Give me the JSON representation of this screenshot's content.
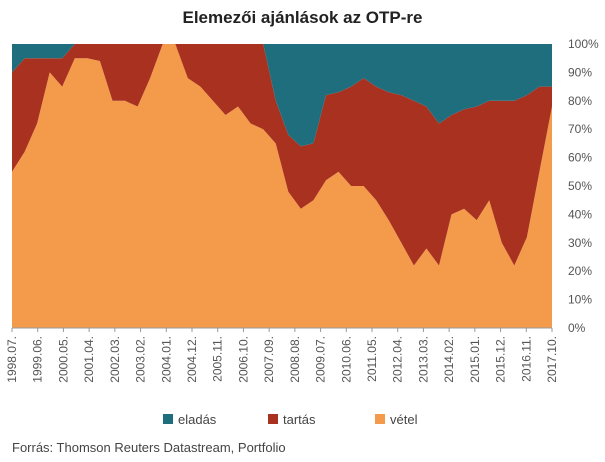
{
  "colors": {
    "eladas": "#1f6e7e",
    "tartas": "#a83120",
    "vetel": "#f39b4a"
  },
  "chart_data": {
    "type": "area",
    "stacked": true,
    "title": "Elemezői ajánlások az OTP-re",
    "source": "Forrás: Thomson Reuters Datastream, Portfolio",
    "ylim": [
      0,
      100
    ],
    "y_ticks": [
      "0%",
      "10%",
      "20%",
      "30%",
      "40%",
      "50%",
      "60%",
      "70%",
      "80%",
      "90%",
      "100%"
    ],
    "x_ticks": [
      "1998.07.",
      "1999.06.",
      "2000.05.",
      "2001.04.",
      "2002.03.",
      "2003.02.",
      "2004.01.",
      "2004.12.",
      "2005.11.",
      "2006.10.",
      "2007.09.",
      "2008.08.",
      "2009.07.",
      "2010.06.",
      "2011.05.",
      "2012.04.",
      "2013.03.",
      "2014.02.",
      "2015.01.",
      "2015.12.",
      "2016.11.",
      "2017.10."
    ],
    "legend": [
      {
        "key": "eladas",
        "label": "eladás"
      },
      {
        "key": "tartas",
        "label": "tartás"
      },
      {
        "key": "vetel",
        "label": "vétel"
      }
    ],
    "x": [
      "1998.07.",
      "1998.12.",
      "1999.06.",
      "1999.12.",
      "2000.05.",
      "2000.11.",
      "2001.04.",
      "2001.10.",
      "2002.03.",
      "2002.09.",
      "2003.02.",
      "2003.08.",
      "2004.01.",
      "2004.07.",
      "2004.12.",
      "2005.06.",
      "2005.11.",
      "2006.05.",
      "2006.10.",
      "2007.04.",
      "2007.09.",
      "2008.03.",
      "2008.08.",
      "2009.02.",
      "2009.07.",
      "2010.01.",
      "2010.06.",
      "2010.12.",
      "2011.05.",
      "2011.11.",
      "2012.04.",
      "2012.10.",
      "2013.03.",
      "2013.09.",
      "2014.02.",
      "2014.08.",
      "2015.01.",
      "2015.07.",
      "2015.12.",
      "2016.06.",
      "2016.11.",
      "2017.05.",
      "2017.10.",
      "2018.03."
    ],
    "series": [
      {
        "name": "vétel",
        "key": "vetel",
        "values": [
          55,
          62,
          72,
          90,
          85,
          95,
          95,
          94,
          80,
          80,
          78,
          88,
          100,
          100,
          88,
          85,
          80,
          75,
          78,
          72,
          70,
          65,
          48,
          42,
          45,
          52,
          55,
          50,
          50,
          45,
          38,
          30,
          22,
          28,
          22,
          40,
          42,
          38,
          45,
          30,
          22,
          32,
          55,
          78
        ]
      },
      {
        "name": "tartás",
        "key": "tartas",
        "values": [
          35,
          33,
          23,
          5,
          10,
          5,
          5,
          6,
          20,
          20,
          22,
          12,
          0,
          0,
          12,
          15,
          20,
          25,
          22,
          28,
          30,
          15,
          20,
          22,
          20,
          30,
          28,
          35,
          38,
          40,
          45,
          52,
          58,
          50,
          50,
          35,
          35,
          40,
          35,
          50,
          58,
          50,
          30,
          7
        ]
      },
      {
        "name": "eladás",
        "key": "eladas",
        "values": [
          10,
          5,
          5,
          5,
          5,
          0,
          0,
          0,
          0,
          0,
          0,
          0,
          0,
          0,
          0,
          0,
          0,
          0,
          0,
          0,
          0,
          20,
          32,
          36,
          35,
          18,
          17,
          15,
          12,
          15,
          17,
          18,
          20,
          22,
          28,
          25,
          23,
          22,
          20,
          20,
          20,
          18,
          15,
          15
        ]
      }
    ]
  }
}
